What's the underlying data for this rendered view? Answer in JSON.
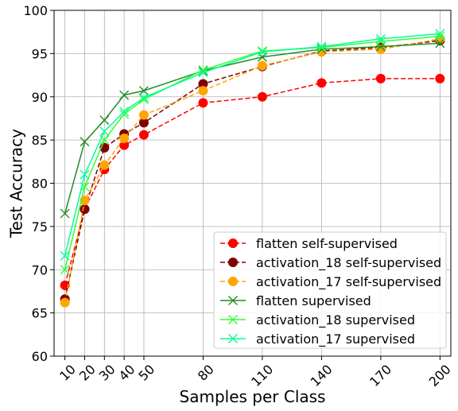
{
  "chart_data": {
    "type": "line",
    "title": "",
    "xlabel": "Samples per Class",
    "ylabel": "Test Accuracy",
    "x": [
      10,
      20,
      30,
      40,
      50,
      80,
      110,
      140,
      170,
      200
    ],
    "x_tick_labels": [
      "10",
      "20",
      "30",
      "40",
      "50",
      "80",
      "110",
      "140",
      "170",
      "200"
    ],
    "ylim": [
      60,
      100
    ],
    "y_ticks": [
      60,
      65,
      70,
      75,
      80,
      85,
      90,
      95,
      100
    ],
    "grid": true,
    "legend_position": "lower-right",
    "series": [
      {
        "name": "flatten self-supervised",
        "color": "#ff0000",
        "line_style": "dashed",
        "marker": "circle",
        "values": [
          68.2,
          77.0,
          81.6,
          84.4,
          85.6,
          89.3,
          90.0,
          91.6,
          92.1,
          92.1
        ]
      },
      {
        "name": "activation_18 self-supervised",
        "color": "#800000",
        "line_style": "dashed",
        "marker": "circle",
        "values": [
          66.6,
          77.0,
          84.1,
          85.7,
          87.0,
          91.5,
          93.5,
          95.3,
          95.7,
          96.5
        ]
      },
      {
        "name": "activation_17 self-supervised",
        "color": "#ffa500",
        "line_style": "dashed",
        "marker": "circle",
        "values": [
          66.2,
          78.0,
          82.1,
          85.2,
          87.9,
          90.7,
          93.6,
          95.2,
          95.5,
          96.7
        ]
      },
      {
        "name": "flatten supervised",
        "color": "#228b22",
        "line_style": "solid",
        "marker": "x",
        "values": [
          76.5,
          84.8,
          87.3,
          90.2,
          90.7,
          93.0,
          94.6,
          95.5,
          95.8,
          96.2
        ]
      },
      {
        "name": "activation_18 supervised",
        "color": "#33ff33",
        "line_style": "solid",
        "marker": "x",
        "values": [
          70.0,
          79.6,
          85.0,
          88.0,
          89.7,
          93.1,
          95.3,
          95.7,
          96.4,
          97.0
        ]
      },
      {
        "name": "activation_17 supervised",
        "color": "#00ff99",
        "line_style": "solid",
        "marker": "x",
        "values": [
          71.6,
          81.0,
          86.0,
          88.3,
          89.9,
          92.8,
          95.2,
          95.8,
          96.7,
          97.3
        ]
      }
    ]
  }
}
